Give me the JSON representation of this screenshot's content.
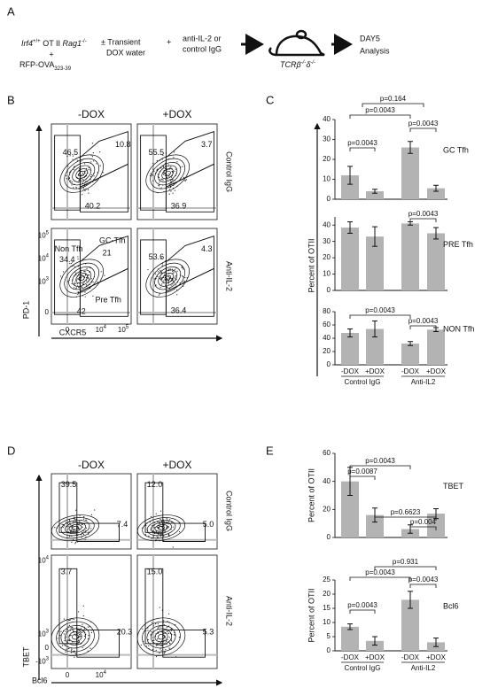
{
  "panel_a": {
    "label": "A",
    "genotype": {
      "gene1": "Irf4",
      "sup1": "+/+",
      "mid": " OT II ",
      "gene2": "Rag1",
      "sup2": "-/-"
    },
    "plus1": "+",
    "antigen": {
      "name": "RFP-OVA",
      "sub": "323-39"
    },
    "dox": [
      "± Transient",
      "DOX water"
    ],
    "plus2": "+",
    "antibody": [
      "anti-IL-2 or",
      "control IgG"
    ],
    "host": {
      "p1": "TCRβ",
      "s1": "-/-",
      "p2": "δ",
      "s2": "-/-"
    },
    "readout": [
      "DAY5",
      "Analysis"
    ]
  },
  "panel_b": {
    "label": "B",
    "columns": [
      "-DOX",
      "+DOX"
    ],
    "rows": [
      "Control IgG",
      "Anti-IL-2"
    ],
    "y_axis": "PD-1",
    "x_axis": "CXCR5",
    "yticks": [
      {
        "base": "10",
        "exp": "5"
      },
      {
        "base": "10",
        "exp": "4"
      },
      {
        "base": "10",
        "exp": "3"
      },
      "0"
    ],
    "xticks": [
      "0",
      {
        "base": "10",
        "exp": "4"
      },
      {
        "base": "10",
        "exp": "5"
      }
    ],
    "gate_names": [
      "Non Tfh",
      "GC-Tfh",
      "Pre Tfh"
    ],
    "gates": [
      [
        "46.5",
        "10.8",
        "40.2"
      ],
      [
        "55.5",
        "3.7",
        "36.9"
      ],
      [
        "34.4",
        "21",
        "42"
      ],
      [
        "53.6",
        "4.3",
        "36.4"
      ]
    ]
  },
  "panel_c": {
    "label": "C"
  },
  "panel_d": {
    "label": "D",
    "columns": [
      "-DOX",
      "+DOX"
    ],
    "rows": [
      "Control IgG",
      "Anti-IL-2"
    ],
    "y_axis": "TBET",
    "x_axis": "Bcl6",
    "yticks": [
      {
        "base": "10",
        "exp": "4"
      },
      {
        "base": "10",
        "exp": "3"
      },
      "0",
      {
        "base": "-10",
        "exp": "3"
      }
    ],
    "xticks": [
      "0",
      {
        "base": "10",
        "exp": "4"
      }
    ],
    "gates": [
      [
        "39.5",
        "7.4"
      ],
      [
        "12.0",
        "5.0"
      ],
      [
        "3.7",
        "20.3"
      ],
      [
        "15.0",
        "5.3"
      ]
    ]
  },
  "panel_e": {
    "label": "E"
  },
  "chart_data": [
    {
      "type": "bar",
      "title": "GC Tfh",
      "values": [
        12,
        4,
        26,
        5.5
      ],
      "errors": [
        4.5,
        1,
        3,
        1.5
      ],
      "color": "#b3b3b3",
      "ylim": [
        0,
        40
      ],
      "yticks": [
        0,
        10,
        20,
        30,
        40
      ],
      "annotations": [
        "p=0.164",
        "p=0.0043",
        "p=0.0043",
        "p=0.0043"
      ]
    },
    {
      "type": "bar",
      "title": "PRE Tfh",
      "y_label": "Percent of OTII",
      "values": [
        38.5,
        33,
        41,
        35
      ],
      "errors": [
        3.5,
        6,
        1,
        3.5
      ],
      "color": "#b3b3b3",
      "ylim": [
        0,
        45
      ],
      "yticks": [
        0,
        10,
        20,
        30,
        40
      ],
      "annotations": [
        "p=0.0043"
      ]
    },
    {
      "type": "bar",
      "title": "NON Tfh",
      "values": [
        48,
        54,
        32,
        53
      ],
      "errors": [
        6,
        12,
        3,
        3
      ],
      "color": "#b3b3b3",
      "ylim": [
        0,
        80
      ],
      "yticks": [
        0,
        20,
        40,
        60,
        80
      ],
      "annotations": [
        "p=0.0043",
        "p=0.0043"
      ],
      "categories": [
        "-DOX",
        "+DOX",
        "-DOX",
        "+DOX"
      ],
      "groups": [
        "Control IgG",
        "Anti-IL2"
      ]
    },
    {
      "type": "bar",
      "title": "TBET",
      "y_label": "Percent of OTII",
      "values": [
        40,
        16,
        6,
        17
      ],
      "errors": [
        10,
        5,
        3,
        3.5
      ],
      "color": "#b3b3b3",
      "ylim": [
        0,
        60
      ],
      "yticks": [
        0,
        20,
        40,
        60
      ],
      "annotations": [
        "p=0.0043",
        "p=0.0087",
        "p=0.6623",
        "p=0.004"
      ]
    },
    {
      "type": "bar",
      "title": "Bcl6",
      "y_label": "Percent of OTII",
      "values": [
        8.5,
        3.5,
        18,
        3
      ],
      "errors": [
        1,
        1.5,
        3,
        1.5
      ],
      "color": "#b3b3b3",
      "ylim": [
        0,
        25
      ],
      "yticks": [
        0,
        5,
        10,
        15,
        20,
        25
      ],
      "annotations": [
        "p=0.931",
        "p=0.0043",
        "p=0.0043",
        "p=0.0043"
      ],
      "categories": [
        "-DOX",
        "+DOX",
        "-DOX",
        "+DOX"
      ],
      "groups": [
        "Control IgG",
        "Anti-IL2"
      ]
    }
  ]
}
